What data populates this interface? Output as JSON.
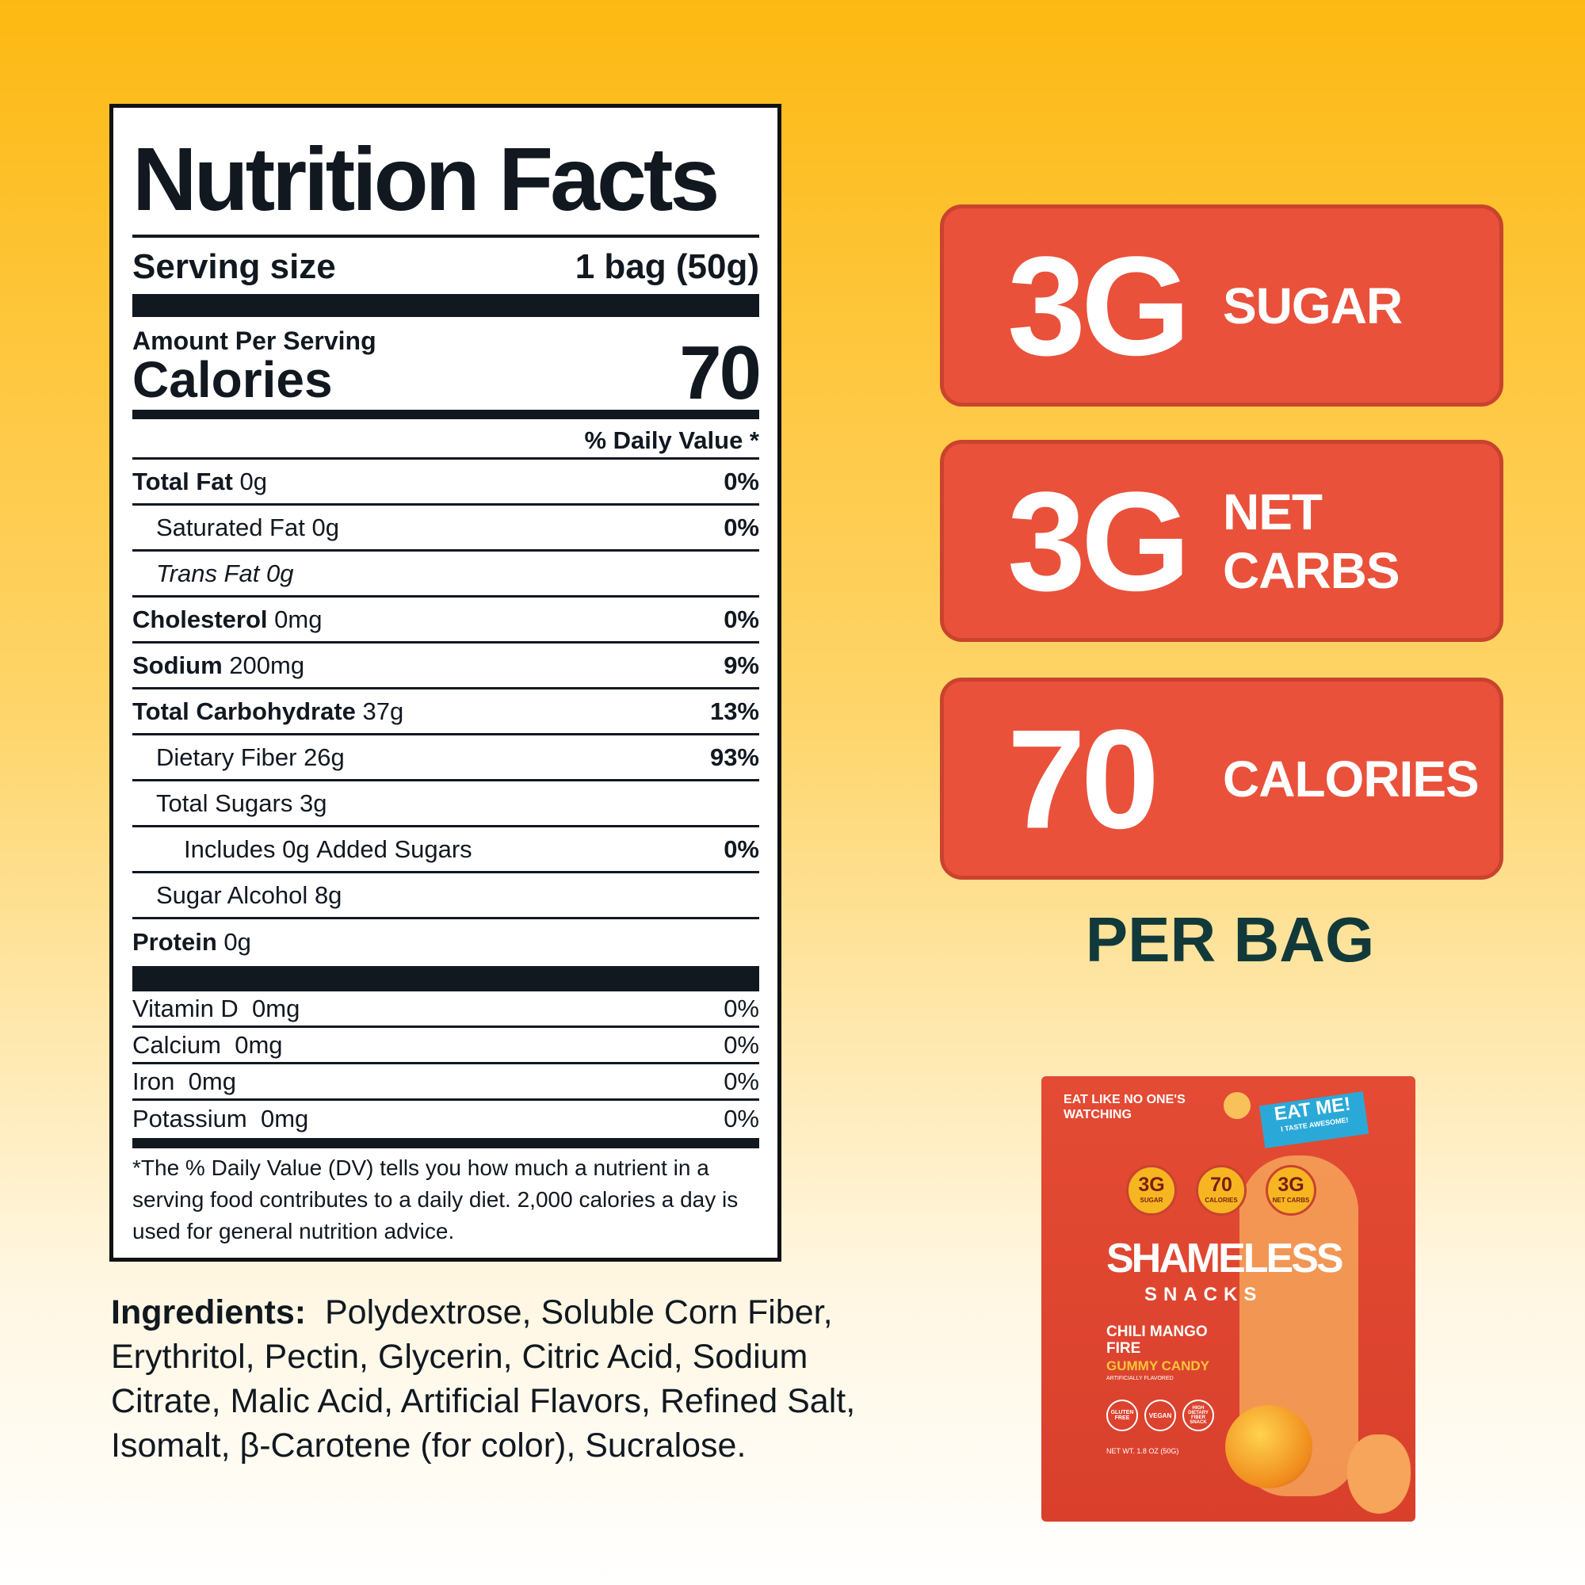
{
  "nutrition_label": {
    "title": "Nutrition Facts",
    "serving_size_label": "Serving size",
    "serving_size": "1 bag (50g)",
    "amount_per_serving": "Amount Per Serving",
    "calories_label": "Calories",
    "calories": "70",
    "daily_value_header": "% Daily Value *",
    "rows": [
      {
        "name": "Total Fat",
        "amount": "0g",
        "dv": "0%"
      },
      {
        "name": "Saturated Fat",
        "amount": "0g",
        "dv": "0%"
      },
      {
        "name": "Trans Fat",
        "amount": "0g"
      },
      {
        "name": "Cholesterol",
        "amount": "0mg",
        "dv": "0%"
      },
      {
        "name": "Sodium",
        "amount": "200mg",
        "dv": "9%"
      },
      {
        "name": "Total Carbohydrate",
        "amount": "37g",
        "dv": "13%"
      },
      {
        "name": "Dietary Fiber",
        "amount": "26g",
        "dv": "93%"
      },
      {
        "name": "Total Sugars",
        "amount": "3g"
      },
      {
        "name": "Added Sugars",
        "prefix": "Includes",
        "amount": "0g",
        "dv": "0%"
      },
      {
        "name": "Sugar Alcohol",
        "amount": "8g"
      },
      {
        "name": "Protein",
        "amount": "0g"
      }
    ],
    "vitamins": [
      {
        "name": "Vitamin D",
        "amount": "0mg",
        "dv": "0%"
      },
      {
        "name": "Calcium",
        "amount": "0mg",
        "dv": "0%"
      },
      {
        "name": "Iron",
        "amount": "0mg",
        "dv": "0%"
      },
      {
        "name": "Potassium",
        "amount": "0mg",
        "dv": "0%"
      }
    ],
    "footnote": "*The % Daily Value (DV) tells you how much a nutrient in a serving food contributes to a daily diet. 2,000 calories a day is used for general nutrition advice."
  },
  "badges": [
    {
      "value": "3G",
      "label": "SUGAR"
    },
    {
      "value": "3G",
      "label": "NET CARBS"
    },
    {
      "value": "70",
      "label": "CALORIES"
    }
  ],
  "per_bag": "PER BAG",
  "ingredients": {
    "label": "Ingredients:",
    "text": "Polydextrose, Soluble Corn Fiber, Erythritol, Pectin, Glycerin, Citric Acid, Sodium Citrate, Malic Acid, Artificial Flavors, Refined Salt, Isomalt, β-Carotene (for color), Sucralose."
  },
  "package": {
    "tagline": "EAT LIKE NO ONE'S WATCHING",
    "sticker": "EAT ME!",
    "sticker_sub": "I TASTE AWESOME!",
    "badges": [
      {
        "value": "3G",
        "label": "SUGAR"
      },
      {
        "value": "70",
        "label": "CALORIES"
      },
      {
        "value": "3G",
        "label": "NET CARBS"
      }
    ],
    "brand": "SHAMELESS",
    "brand_sub": "SNACKS",
    "flavor": "CHILI MANGO FIRE",
    "product": "GUMMY CANDY",
    "flavor_note": "ARTIFICIALLY FLAVORED",
    "claims": [
      "GLUTEN FREE",
      "VEGAN",
      "HIGH DIETARY FIBER SNACK"
    ],
    "net_weight": "NET WT. 1.8 OZ (50G)"
  }
}
